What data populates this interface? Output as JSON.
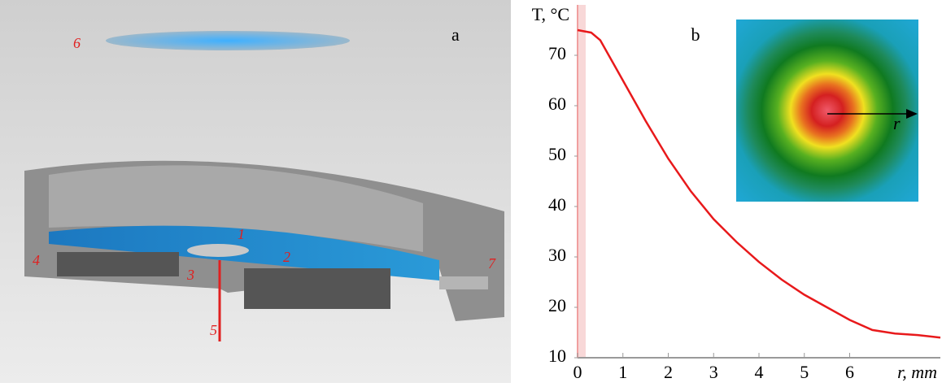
{
  "figure_a": {
    "label": "a",
    "callouts": [
      "1",
      "2",
      "3",
      "4",
      "5",
      "6",
      "7"
    ]
  },
  "chart_data": {
    "type": "line",
    "label": "b",
    "ylabel": "T, °C",
    "xlabel": "r, mm",
    "inset_label": "r",
    "x": [
      0,
      0.3,
      0.5,
      1,
      1.5,
      2,
      2.5,
      3,
      3.5,
      4,
      4.5,
      5,
      5.5,
      6,
      6.5,
      7,
      7.5,
      8
    ],
    "series": [
      {
        "color": "#e8191b",
        "values": [
          75,
          74.5,
          73,
          65,
          57,
          49.5,
          43,
          37.5,
          33,
          29,
          25.5,
          22.5,
          20,
          17.5,
          15.5,
          14.8,
          14.5,
          14
        ]
      }
    ],
    "xlim": [
      0,
      8
    ],
    "ylim": [
      10,
      80
    ],
    "xticks": [
      0,
      1,
      2,
      3,
      4,
      5,
      6
    ],
    "yticks": [
      10,
      20,
      30,
      40,
      50,
      60,
      70
    ]
  }
}
